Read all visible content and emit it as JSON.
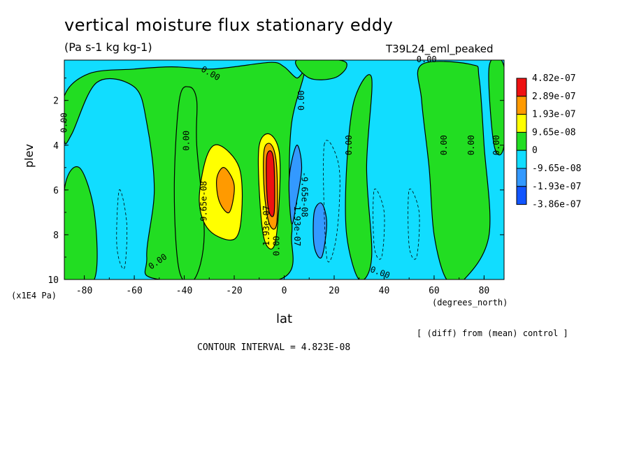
{
  "header": {
    "title": "vertical moisture flux stationary eddy",
    "units": "(Pa s-1 kg kg-1)",
    "run_name": "T39L24_eml_peaked"
  },
  "axes": {
    "ylabel": "plev",
    "yunits": "(x1E4 Pa)",
    "xlabel": "lat",
    "xunits": "(degrees_north)"
  },
  "footer": {
    "diff_note": "[ (diff) from (mean) control ]",
    "contour_interval": "CONTOUR INTERVAL = 4.823E-08"
  },
  "colors": {
    "red": "#ee1111",
    "orange": "#ff9a00",
    "yellow": "#ffff00",
    "green": "#22dd22",
    "cyan": "#11ddff",
    "mid_blue": "#3399ff",
    "dark_blue": "#1155ff"
  },
  "chart_data": {
    "type": "heatmap",
    "subtype": "filled contour",
    "x": {
      "label": "lat",
      "units": "degrees_north",
      "range": [
        -88,
        88
      ],
      "ticks": [
        -80,
        -60,
        -40,
        -20,
        0,
        20,
        40,
        60,
        80
      ],
      "tick_labels": [
        "-80",
        "-60",
        "-40",
        "-20",
        "0",
        "20",
        "40",
        "60",
        "80"
      ]
    },
    "y": {
      "label": "plev",
      "units": "x1E4 Pa",
      "range": [
        10,
        0.2
      ],
      "inverted": true,
      "ticks": [
        2,
        4,
        6,
        8,
        10
      ],
      "tick_labels": [
        "2",
        "4",
        "6",
        "8",
        "10"
      ]
    },
    "legend": {
      "placement": "right",
      "entries": [
        {
          "label": "4.82e-07",
          "color": "#ee1111"
        },
        {
          "label": "2.89e-07",
          "color": "#ff9a00"
        },
        {
          "label": "1.93e-07",
          "color": "#ffff00"
        },
        {
          "label": "9.65e-08",
          "color": "#22dd22"
        },
        {
          "label": "0",
          "color": "#11ddff"
        },
        {
          "label": "-9.65e-08",
          "color": "#3399ff"
        },
        {
          "label": "-1.93e-07",
          "color": "#1155ff"
        },
        {
          "label": "-3.86e-07",
          "color": ""
        }
      ]
    },
    "contour_interval": 4.823e-08,
    "regions": [
      {
        "level": "positive",
        "color": "#22dd22",
        "polygon": [
          [
            -88,
            1.8
          ],
          [
            -78,
            0.8
          ],
          [
            -60,
            0.6
          ],
          [
            -45,
            0.5
          ],
          [
            -30,
            0.6
          ],
          [
            -20,
            0.5
          ],
          [
            -5,
            0.3
          ],
          [
            0,
            0.5
          ],
          [
            5,
            1.0
          ],
          [
            8,
            0.8
          ],
          [
            3,
            3
          ],
          [
            2,
            6
          ],
          [
            3,
            8
          ],
          [
            -2,
            10
          ],
          [
            -50,
            10
          ],
          [
            -55,
            9
          ],
          [
            -52,
            6
          ],
          [
            -55,
            3
          ],
          [
            -60,
            1.4
          ],
          [
            -75,
            1.2
          ],
          [
            -85,
            3.5
          ],
          [
            -88,
            3.8
          ]
        ]
      },
      {
        "level": "positive",
        "color": "#22dd22",
        "polygon": [
          [
            -38,
            1.4
          ],
          [
            -42,
            2
          ],
          [
            -44,
            6
          ],
          [
            -42,
            9.6
          ],
          [
            -36,
            10
          ],
          [
            -32,
            8
          ],
          [
            -35,
            4
          ],
          [
            -35,
            2
          ]
        ]
      },
      {
        "level": "positive",
        "color": "#22dd22",
        "polygon": [
          [
            -88,
            6
          ],
          [
            -82,
            5
          ],
          [
            -76,
            7
          ],
          [
            -76,
            10
          ],
          [
            -88,
            10
          ]
        ]
      },
      {
        "level": "positive",
        "color": "#22dd22",
        "polygon": [
          [
            28,
            2
          ],
          [
            35,
            1
          ],
          [
            33,
            5
          ],
          [
            35,
            9
          ],
          [
            30,
            10
          ],
          [
            25,
            8
          ],
          [
            25,
            5
          ]
        ]
      },
      {
        "level": "positive",
        "color": "#22dd22",
        "polygon": [
          [
            55,
            0.4
          ],
          [
            75,
            0.4
          ],
          [
            78,
            1
          ],
          [
            80,
            4
          ],
          [
            82,
            8
          ],
          [
            72,
            10
          ],
          [
            65,
            10
          ],
          [
            60,
            8
          ],
          [
            58,
            5
          ],
          [
            55,
            2
          ]
        ]
      },
      {
        "level": "positive",
        "color": "#22dd22",
        "polygon": [
          [
            82,
            0.5
          ],
          [
            88,
            0.5
          ],
          [
            88,
            4
          ],
          [
            84,
            4
          ]
        ]
      },
      {
        "level": "positive",
        "color": "#22dd22",
        "polygon": [
          [
            5,
            0.2
          ],
          [
            22,
            0.2
          ],
          [
            25,
            0.5
          ],
          [
            20,
            1.0
          ],
          [
            10,
            1.0
          ]
        ]
      },
      {
        "level": "positive",
        "color": "#ffff00",
        "polygon": [
          [
            -34,
            6.5
          ],
          [
            -31,
            4.5
          ],
          [
            -26,
            4
          ],
          [
            -18,
            5
          ],
          [
            -17,
            7
          ],
          [
            -20,
            8.2
          ],
          [
            -30,
            7.8
          ]
        ]
      },
      {
        "level": "positive",
        "color": "#ffff00",
        "polygon": [
          [
            -10,
            4
          ],
          [
            -6,
            3.5
          ],
          [
            -2,
            4.3
          ],
          [
            -2,
            6.5
          ],
          [
            -4,
            8.5
          ],
          [
            -8,
            8.2
          ],
          [
            -10,
            6
          ]
        ]
      },
      {
        "level": "positive",
        "color": "#ff9a00",
        "polygon": [
          [
            -27,
            5.5
          ],
          [
            -24,
            5
          ],
          [
            -20,
            5.8
          ],
          [
            -22,
            7
          ],
          [
            -26,
            6.5
          ]
        ]
      },
      {
        "level": "positive",
        "color": "#ff9a00",
        "polygon": [
          [
            -8,
            4.2
          ],
          [
            -5,
            4
          ],
          [
            -3,
            5
          ],
          [
            -3,
            7.5
          ],
          [
            -6,
            7.5
          ],
          [
            -8,
            6
          ]
        ]
      },
      {
        "level": "positive",
        "color": "#ee1111",
        "polygon": [
          [
            -7,
            4.5
          ],
          [
            -5,
            4.3
          ],
          [
            -4,
            5
          ],
          [
            -4,
            7
          ],
          [
            -6,
            7
          ],
          [
            -7,
            6
          ]
        ]
      },
      {
        "level": "negative",
        "color": "#3399ff",
        "polygon": [
          [
            2,
            5.5
          ],
          [
            5,
            4
          ],
          [
            7,
            5
          ],
          [
            5,
            6.5
          ],
          [
            3,
            7.5
          ]
        ]
      },
      {
        "level": "negative",
        "color": "#3399ff",
        "polygon": [
          [
            12,
            7
          ],
          [
            15,
            6.6
          ],
          [
            17,
            7.5
          ],
          [
            15,
            9
          ],
          [
            12,
            8.5
          ]
        ]
      }
    ],
    "zero_contour_labels": [
      {
        "text": "0.00",
        "x": -87,
        "y": 3.0,
        "rotate": -90
      },
      {
        "text": "0.00",
        "x": -50,
        "y": 9.3,
        "rotate": -35
      },
      {
        "text": "0.00",
        "x": -38,
        "y": 3.8,
        "rotate": -90
      },
      {
        "text": "0.00",
        "x": -30,
        "y": 0.9,
        "rotate": 30
      },
      {
        "text": "0.00",
        "x": 8,
        "y": 2.0,
        "rotate": -90
      },
      {
        "text": "0.00",
        "x": -2,
        "y": 8.5,
        "rotate": -90
      },
      {
        "text": "0.00",
        "x": 27,
        "y": 4.0,
        "rotate": -90
      },
      {
        "text": "0.00",
        "x": 38,
        "y": 9.8,
        "rotate": 20
      },
      {
        "text": "0.00",
        "x": 57,
        "y": 0.3,
        "rotate": 0
      },
      {
        "text": "0.00",
        "x": 65,
        "y": 4.0,
        "rotate": -90
      },
      {
        "text": "0.00",
        "x": 76,
        "y": 4.0,
        "rotate": -90
      },
      {
        "text": "0.00",
        "x": 86,
        "y": 4.0,
        "rotate": -90
      }
    ],
    "other_contour_labels": [
      {
        "text": "9.65e-08",
        "x": -31,
        "y": 6.5,
        "rotate": -90
      },
      {
        "text": "1.93e-07",
        "x": -6,
        "y": 7.6,
        "rotate": -90
      },
      {
        "text": "-9.65e-08",
        "x": 7,
        "y": 6.2,
        "rotate": 90
      },
      {
        "text": "-1.93e-07",
        "x": 4,
        "y": 7.5,
        "rotate": 90
      }
    ]
  }
}
